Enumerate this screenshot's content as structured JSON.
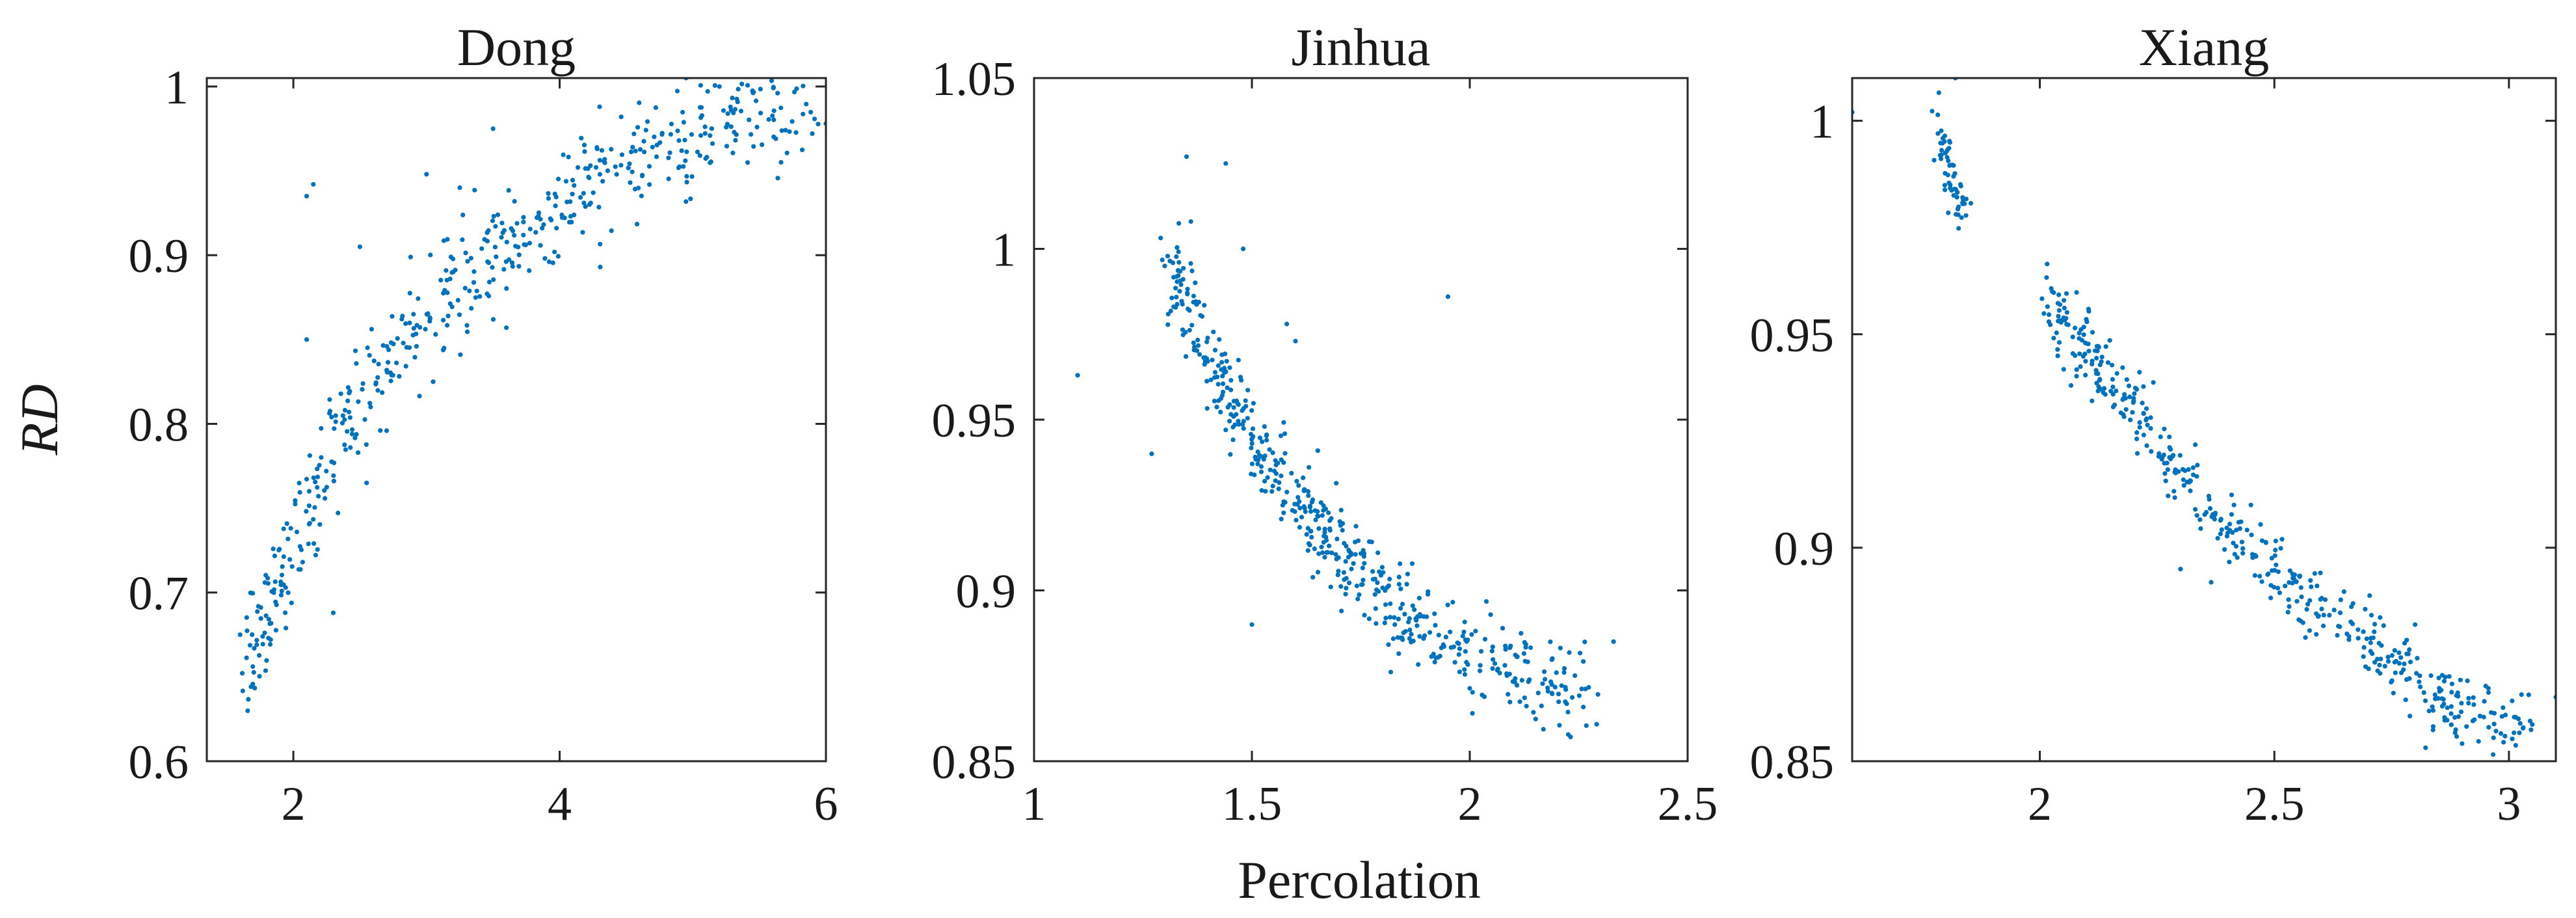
{
  "figure": {
    "xlabel": "Percolation",
    "ylabel": "RD"
  },
  "chart_data": [
    {
      "type": "scatter",
      "title": "Dong",
      "xlabel": "",
      "ylabel": "RD",
      "xlim": [
        1.35,
        6
      ],
      "ylim": [
        0.6,
        1.005
      ],
      "xticks": [
        2,
        4,
        6
      ],
      "yticks": [
        0.6,
        0.7,
        0.8,
        0.9,
        1
      ],
      "tick_labels_x": [
        "2",
        "4",
        "6"
      ],
      "tick_labels_y": [
        "0.6",
        "0.7",
        "0.8",
        "0.9",
        "1"
      ],
      "point_color": "#0072BD",
      "point_count": 520,
      "grid": false,
      "trend": "increasing concave curve",
      "curve": [
        [
          1.65,
          0.66
        ],
        [
          1.75,
          0.675
        ],
        [
          1.85,
          0.695
        ],
        [
          2.0,
          0.725
        ],
        [
          2.2,
          0.77
        ],
        [
          2.4,
          0.8
        ],
        [
          2.7,
          0.835
        ],
        [
          3.0,
          0.865
        ],
        [
          3.5,
          0.9
        ],
        [
          4.0,
          0.93
        ],
        [
          4.5,
          0.955
        ],
        [
          5.0,
          0.975
        ],
        [
          5.5,
          0.99
        ],
        [
          5.9,
          0.995
        ]
      ],
      "noise": 0.018,
      "x_spread": 0.06,
      "outliers": [
        [
          2.1,
          0.935
        ],
        [
          2.15,
          0.942
        ],
        [
          2.3,
          0.688
        ],
        [
          2.55,
          0.765
        ],
        [
          3.2,
          0.89
        ],
        [
          3.0,
          0.948
        ],
        [
          3.5,
          0.975
        ],
        [
          3.25,
          0.94
        ],
        [
          3.6,
          0.857
        ],
        [
          3.05,
          0.825
        ],
        [
          4.95,
          1.005
        ],
        [
          6.0,
          0.978
        ],
        [
          1.6,
          0.675
        ],
        [
          2.1,
          0.85
        ],
        [
          2.5,
          0.905
        ],
        [
          4.3,
          0.988
        ],
        [
          5.2,
          1.0
        ]
      ]
    },
    {
      "type": "scatter",
      "title": "Jinhua",
      "xlabel": "Percolation",
      "ylabel": "",
      "xlim": [
        1,
        2.5
      ],
      "ylim": [
        0.85,
        1.05
      ],
      "xticks": [
        1,
        1.5,
        2,
        2.5
      ],
      "yticks": [
        0.85,
        0.9,
        0.95,
        1,
        1.05
      ],
      "tick_labels_x": [
        "1",
        "1.5",
        "2",
        "2.5"
      ],
      "tick_labels_y": [
        "0.85",
        "0.9",
        "0.95",
        "1",
        "1.05"
      ],
      "point_color": "#0072BD",
      "point_count": 520,
      "grid": false,
      "trend": "decreasing convex curve",
      "curve": [
        [
          1.33,
          0.99
        ],
        [
          1.38,
          0.975
        ],
        [
          1.42,
          0.962
        ],
        [
          1.5,
          0.945
        ],
        [
          1.6,
          0.928
        ],
        [
          1.7,
          0.912
        ],
        [
          1.8,
          0.898
        ],
        [
          1.9,
          0.889
        ],
        [
          2.0,
          0.881
        ],
        [
          2.1,
          0.876
        ],
        [
          2.2,
          0.871
        ],
        [
          2.26,
          0.869
        ]
      ],
      "noise": 0.007,
      "x_spread": 0.03,
      "outliers": [
        [
          1.1,
          0.963
        ],
        [
          1.35,
          1.027
        ],
        [
          1.44,
          1.025
        ],
        [
          1.48,
          1.0
        ],
        [
          1.5,
          0.89
        ],
        [
          1.95,
          0.986
        ],
        [
          2.33,
          0.885
        ],
        [
          1.58,
          0.978
        ],
        [
          1.6,
          0.973
        ],
        [
          1.27,
          0.94
        ],
        [
          1.3,
          0.995
        ],
        [
          1.36,
          1.008
        ]
      ]
    },
    {
      "type": "scatter",
      "title": "Xiang",
      "xlabel": "",
      "ylabel": "",
      "xlim": [
        1.6,
        3.1
      ],
      "ylim": [
        0.85,
        1.01
      ],
      "xticks": [
        2,
        2.5,
        3
      ],
      "yticks": [
        0.85,
        0.9,
        0.95,
        1
      ],
      "tick_labels_x": [
        "2",
        "2.5",
        "3"
      ],
      "tick_labels_y": [
        "0.85",
        "0.9",
        "0.95",
        "1"
      ],
      "point_color": "#0072BD",
      "point_count": 520,
      "grid": false,
      "trend": "small cluster near (1.8, 0.99) and decreasing curve from (2.02, 0.955) to (3.03, 0.857)",
      "cluster": {
        "x_range": [
          1.78,
          1.84
        ],
        "y_range": [
          0.977,
          1.0
        ],
        "count": 60
      },
      "curve": [
        [
          2.02,
          0.957
        ],
        [
          2.1,
          0.947
        ],
        [
          2.2,
          0.932
        ],
        [
          2.3,
          0.916
        ],
        [
          2.4,
          0.904
        ],
        [
          2.5,
          0.895
        ],
        [
          2.6,
          0.885
        ],
        [
          2.7,
          0.877
        ],
        [
          2.8,
          0.869
        ],
        [
          2.9,
          0.862
        ],
        [
          3.0,
          0.858
        ],
        [
          3.04,
          0.857
        ]
      ],
      "noise": 0.0045,
      "x_spread": 0.025,
      "outliers": [
        [
          1.82,
          1.01
        ],
        [
          1.6,
          1.002
        ],
        [
          3.1,
          0.865
        ],
        [
          2.3,
          0.895
        ],
        [
          2.8,
          0.882
        ],
        [
          2.45,
          0.91
        ],
        [
          2.2,
          0.935
        ]
      ]
    }
  ]
}
